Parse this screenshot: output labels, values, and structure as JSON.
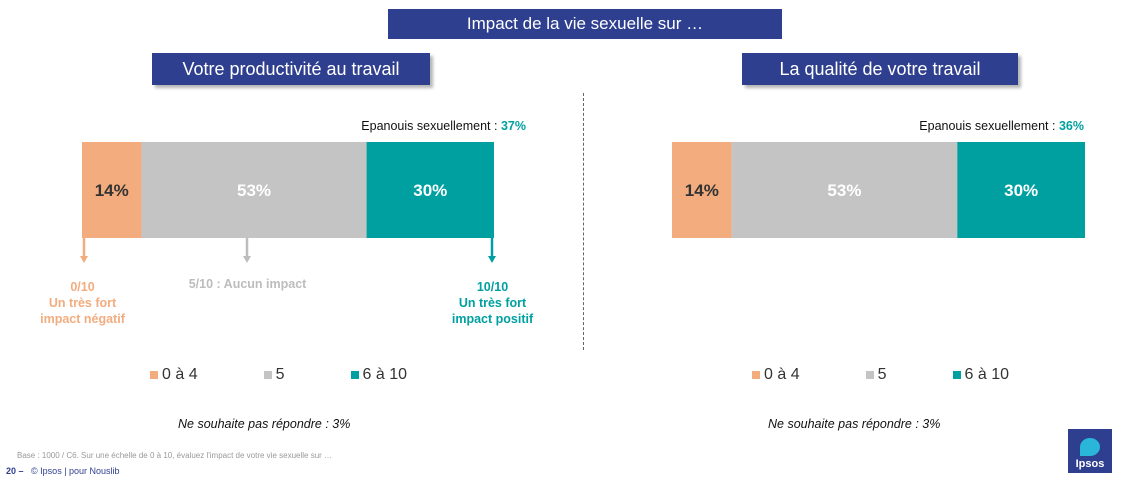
{
  "header": {
    "title": "Impact de la vie sexuelle sur …"
  },
  "colors": {
    "navy": "#2F3F8F",
    "orange": "#F2AC7E",
    "grey": "#C4C4C4",
    "teal": "#00A0A0",
    "orange_label": "#F2AC7E",
    "grey_label": "#BDBDBD",
    "teal_label": "#00A0A0"
  },
  "chart_data": [
    {
      "type": "bar",
      "orientation": "horizontal-stacked",
      "title": "Votre productivité au travail",
      "series": [
        {
          "name": "0 à 4",
          "value": 14,
          "label": "14%"
        },
        {
          "name": "5",
          "value": 53,
          "label": "53%"
        },
        {
          "name": "6 à 10",
          "value": 30,
          "label": "30%"
        }
      ],
      "epanouis_label": "Epanouis sexuellement :",
      "epanouis_value": "37%",
      "no_answer": "Ne souhaite pas répondre : 3%",
      "annotations": {
        "low": [
          "0/10",
          "Un très fort",
          "impact négatif"
        ],
        "mid": "5/10 : Aucun impact",
        "high": [
          "10/10",
          "Un très fort",
          "impact positif"
        ]
      }
    },
    {
      "type": "bar",
      "orientation": "horizontal-stacked",
      "title": "La qualité de votre travail",
      "series": [
        {
          "name": "0 à 4",
          "value": 14,
          "label": "14%"
        },
        {
          "name": "5",
          "value": 53,
          "label": "53%"
        },
        {
          "name": "6 à 10",
          "value": 30,
          "label": "30%"
        }
      ],
      "epanouis_label": "Epanouis sexuellement :",
      "epanouis_value": "36%",
      "no_answer": "Ne souhaite pas répondre : 3%"
    }
  ],
  "footer": {
    "base": "Base : 1000 / C6. Sur une échelle de 0 à 10, évaluez l'impact de votre vie sexuelle sur …",
    "page_number": "20 –",
    "copyright": "© Ipsos | pour Nouslib",
    "logo_text": "Ipsos"
  }
}
